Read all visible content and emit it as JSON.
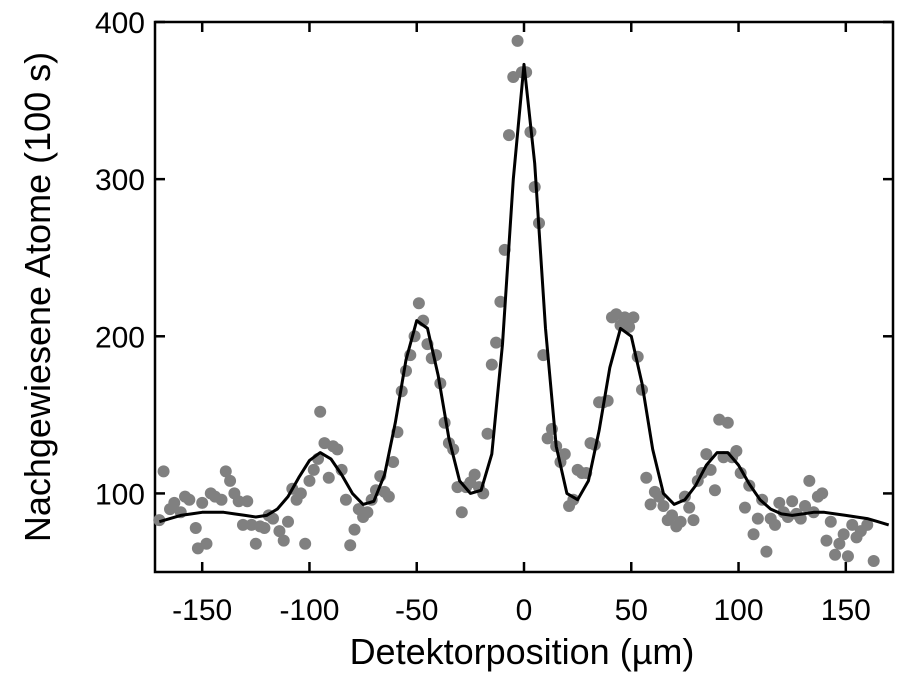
{
  "chart_data": {
    "type": "scatter",
    "xlabel": "Detektorposition (µm)",
    "ylabel": "Nachgewiesene Atome (100 s)",
    "xlim": [
      -172,
      172
    ],
    "ylim": [
      50,
      400
    ],
    "xticks": [
      -150,
      -100,
      -50,
      0,
      50,
      100,
      150
    ],
    "yticks": [
      100,
      200,
      300,
      400
    ],
    "points": {
      "color": "#808080",
      "x": [
        -170,
        -168,
        -165,
        -163,
        -160,
        -158,
        -156,
        -153,
        -152,
        -150,
        -148,
        -146,
        -144,
        -141,
        -139,
        -137,
        -135,
        -133,
        -131,
        -129,
        -127,
        -125,
        -123,
        -121,
        -119,
        -117,
        -114,
        -112,
        -110,
        -108,
        -106,
        -104,
        -102,
        -100,
        -98,
        -96,
        -95,
        -93,
        -91,
        -89,
        -87,
        -85,
        -83,
        -81,
        -79,
        -77,
        -75,
        -73,
        -71,
        -69,
        -67,
        -65,
        -63,
        -61,
        -59,
        -57,
        -55,
        -53,
        -51,
        -49,
        -47,
        -45,
        -43,
        -41,
        -39,
        -37,
        -35,
        -33,
        -31,
        -29,
        -27,
        -25,
        -23,
        -21,
        -19,
        -17,
        -15,
        -13,
        -11,
        -9,
        -7,
        -5,
        -3,
        -1,
        1,
        3,
        5,
        7,
        9,
        11,
        13,
        15,
        17,
        19,
        21,
        23,
        25,
        27,
        29,
        31,
        33,
        35,
        37,
        39,
        41,
        43,
        45,
        47,
        49,
        51,
        53,
        55,
        57,
        59,
        61,
        63,
        65,
        67,
        69,
        71,
        73,
        75,
        77,
        79,
        81,
        83,
        85,
        87,
        89,
        91,
        93,
        95,
        97,
        99,
        101,
        103,
        105,
        107,
        109,
        111,
        113,
        115,
        117,
        119,
        121,
        123,
        125,
        127,
        129,
        131,
        133,
        135,
        137,
        139,
        141,
        143,
        145,
        147,
        149,
        151,
        153,
        155,
        157,
        160,
        163
      ],
      "y": [
        83,
        114,
        90,
        94,
        88,
        98,
        96,
        78,
        65,
        94,
        68,
        100,
        98,
        96,
        114,
        108,
        100,
        95,
        80,
        95,
        80,
        68,
        79,
        78,
        86,
        84,
        76,
        70,
        82,
        103,
        96,
        100,
        68,
        108,
        115,
        122,
        152,
        132,
        110,
        130,
        128,
        115,
        96,
        67,
        77,
        90,
        85,
        88,
        96,
        102,
        111,
        101,
        98,
        120,
        139,
        165,
        178,
        188,
        200,
        221,
        210,
        195,
        186,
        188,
        170,
        145,
        132,
        128,
        104,
        88,
        104,
        107,
        112,
        104,
        100,
        138,
        182,
        196,
        222,
        255,
        328,
        365,
        388,
        368,
        368,
        330,
        295,
        272,
        188,
        135,
        141,
        130,
        120,
        125,
        92,
        96,
        115,
        113,
        113,
        132,
        131,
        158,
        158,
        159,
        212,
        214,
        207,
        212,
        206,
        212,
        187,
        166,
        110,
        93,
        101,
        98,
        92,
        83,
        86,
        79,
        82,
        98,
        91,
        83,
        108,
        113,
        125,
        115,
        102,
        147,
        123,
        145,
        123,
        127,
        113,
        91,
        105,
        74,
        84,
        96,
        63,
        84,
        80,
        94,
        88,
        85,
        95,
        87,
        84,
        92,
        108,
        88,
        98,
        100,
        70,
        82,
        61,
        68,
        74,
        60,
        80,
        72,
        76,
        80,
        57
      ]
    },
    "fit": {
      "color": "#000000",
      "x": [
        -170,
        -165,
        -160,
        -155,
        -150,
        -145,
        -140,
        -135,
        -130,
        -125,
        -120,
        -115,
        -110,
        -105,
        -100,
        -95,
        -90,
        -85,
        -80,
        -75,
        -70,
        -65,
        -60,
        -55,
        -50,
        -45,
        -40,
        -35,
        -30,
        -25,
        -20,
        -15,
        -10,
        -5,
        0,
        5,
        10,
        15,
        20,
        25,
        30,
        35,
        40,
        45,
        50,
        55,
        60,
        65,
        70,
        75,
        80,
        85,
        90,
        95,
        100,
        105,
        110,
        115,
        120,
        125,
        130,
        135,
        140,
        145,
        150,
        155,
        160,
        165,
        170
      ],
      "y": [
        82,
        84,
        86,
        87,
        88,
        88,
        88,
        87,
        86,
        85,
        86,
        90,
        98,
        110,
        121,
        126,
        122,
        112,
        100,
        93,
        95,
        112,
        145,
        185,
        210,
        205,
        175,
        135,
        108,
        100,
        102,
        125,
        195,
        300,
        373,
        310,
        205,
        130,
        100,
        96,
        108,
        140,
        180,
        205,
        200,
        170,
        128,
        100,
        93,
        96,
        105,
        118,
        126,
        126,
        118,
        106,
        96,
        90,
        87,
        86,
        87,
        88,
        88,
        87,
        86,
        85,
        84,
        82,
        80
      ]
    }
  }
}
